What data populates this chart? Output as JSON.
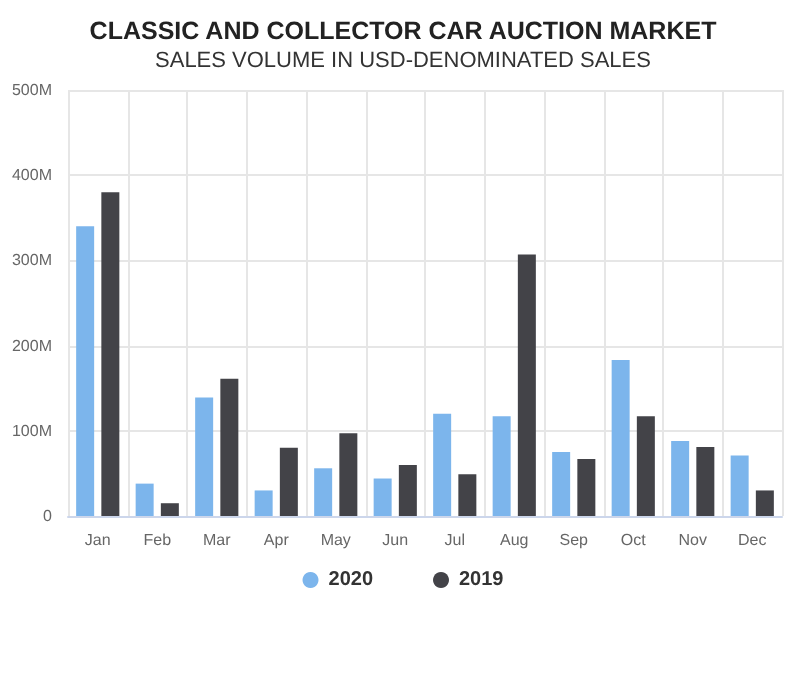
{
  "chart_data": {
    "type": "bar",
    "title": "CLASSIC AND COLLECTOR CAR AUCTION MARKET",
    "subtitle": "SALES VOLUME IN USD-DENOMINATED SALES",
    "categories": [
      "Jan",
      "Feb",
      "Mar",
      "Apr",
      "May",
      "Jun",
      "Jul",
      "Aug",
      "Sep",
      "Oct",
      "Nov",
      "Dec"
    ],
    "series": [
      {
        "name": "2020",
        "color": "#7cb5ec",
        "values": [
          340,
          38,
          139,
          30,
          56,
          44,
          120,
          117,
          75,
          183,
          88,
          71
        ]
      },
      {
        "name": "2019",
        "color": "#434348",
        "values": [
          380,
          15,
          161,
          80,
          97,
          60,
          49,
          307,
          67,
          117,
          81,
          30
        ]
      }
    ],
    "ylim": [
      0,
      500
    ],
    "yticks": [
      {
        "value": 0,
        "label": "0"
      },
      {
        "value": 100,
        "label": "100M"
      },
      {
        "value": 200,
        "label": "200M"
      },
      {
        "value": 300,
        "label": "300M"
      },
      {
        "value": 400,
        "label": "400M"
      },
      {
        "value": 500,
        "label": "500M"
      }
    ],
    "grid": true,
    "legend": "bottom"
  }
}
